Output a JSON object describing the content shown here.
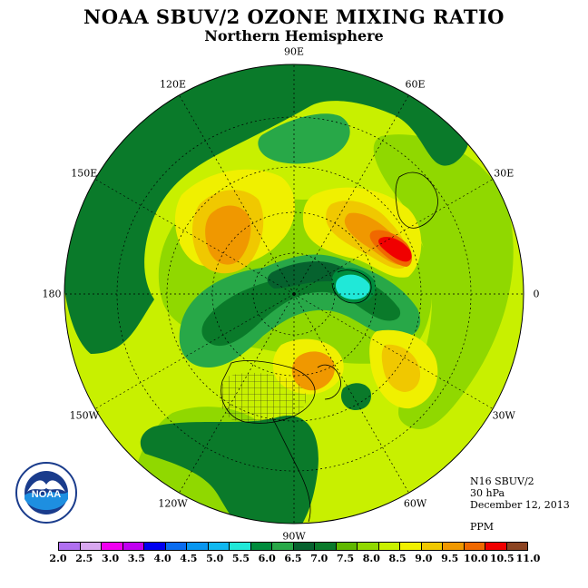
{
  "title": "NOAA SBUV/2 OZONE MIXING RATIO",
  "subtitle": "Northern Hemisphere",
  "map": {
    "projection": "north polar stereographic",
    "longitude_labels": [
      {
        "text": "90E",
        "lon": 90
      },
      {
        "text": "60E",
        "lon": 60
      },
      {
        "text": "30E",
        "lon": 30
      },
      {
        "text": "0",
        "lon": 0
      },
      {
        "text": "30W",
        "lon": -30
      },
      {
        "text": "60W",
        "lon": -60
      },
      {
        "text": "90W",
        "lon": -90
      },
      {
        "text": "120W",
        "lon": -120
      },
      {
        "text": "150W",
        "lon": -150
      },
      {
        "text": "180",
        "lon": 180
      },
      {
        "text": "150E",
        "lon": 150
      },
      {
        "text": "120E",
        "lon": 120
      }
    ],
    "features": [
      {
        "label": "ozone minimum (5.5-6.0 ppm)",
        "level": 5.75
      },
      {
        "label": "ozone maximum (10.0-10.5 ppm)",
        "level": 10.25
      }
    ]
  },
  "info": {
    "line1": "N16 SBUV/2",
    "line2": "30 hPa",
    "line3": "December 12, 2013",
    "units": "PPM"
  },
  "logo": {
    "text": "NOAA"
  },
  "colorbar": {
    "colors": [
      "#b070f0",
      "#d8a8f0",
      "#f000f0",
      "#c000f0",
      "#0000f0",
      "#0a6cf0",
      "#0896f0",
      "#10b8f0",
      "#20e8d8",
      "#008c3c",
      "#28a848",
      "#06622e",
      "#0a7a2a",
      "#60b800",
      "#90d800",
      "#c8f000",
      "#f0f000",
      "#f0c800",
      "#f09800",
      "#f06800",
      "#f00000",
      "#8c4422"
    ],
    "ticks": [
      "2.0",
      "2.5",
      "3.0",
      "3.5",
      "4.0",
      "4.5",
      "5.0",
      "5.5",
      "6.0",
      "6.5",
      "7.0",
      "7.5",
      "8.0",
      "8.5",
      "9.0",
      "9.5",
      "10.0",
      "10.5",
      "11.0"
    ]
  }
}
